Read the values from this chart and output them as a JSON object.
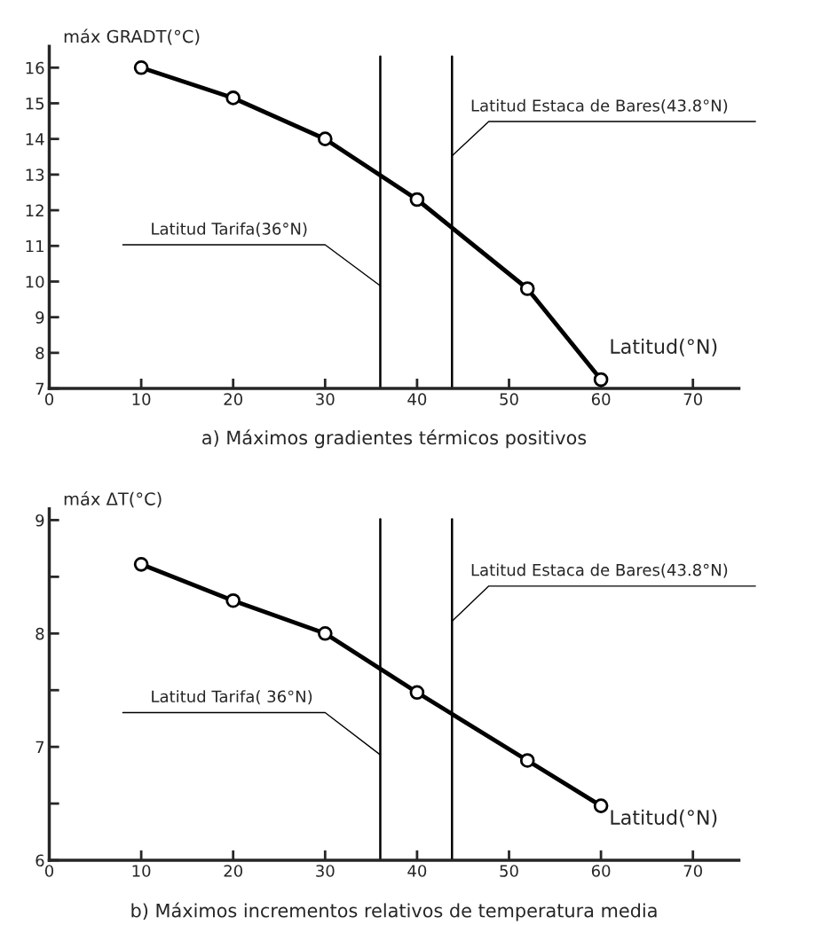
{
  "chart_data": [
    {
      "type": "line",
      "title": "a) Máximos gradientes térmicos positivos",
      "xlabel": "Latitud(°N)",
      "ylabel": "máx GRADT(°C)",
      "x": [
        10,
        20,
        30,
        40,
        52,
        60
      ],
      "values": [
        16.0,
        15.15,
        14.0,
        12.3,
        9.8,
        7.25
      ],
      "color": "#000000",
      "marker": "circle",
      "line_style": "solid",
      "xlim": [
        0,
        75
      ],
      "xticks": [
        0,
        10,
        20,
        30,
        40,
        50,
        60,
        70
      ],
      "ylim": [
        7,
        16.6
      ],
      "yticks": [
        7,
        8,
        9,
        10,
        11,
        12,
        13,
        14,
        15,
        16
      ],
      "ref_lines": [
        {
          "axis": "x",
          "value": 36,
          "label": "Latitud Tarifa(36°N)",
          "color": "#000000"
        },
        {
          "axis": "x",
          "value": 43.8,
          "label": "Latitud Estaca de Bares(43.8°N)",
          "color": "#000000"
        }
      ],
      "grid": false
    },
    {
      "type": "line",
      "title": "b) Máximos incrementos relativos de temperatura media",
      "xlabel": "Latitud(°N)",
      "ylabel": "máx ΔT(°C)",
      "x": [
        10,
        20,
        30,
        40,
        52,
        60
      ],
      "values": [
        8.61,
        8.29,
        8.0,
        7.48,
        6.88,
        6.48
      ],
      "color": "#000000",
      "marker": "circle",
      "line_style": "solid",
      "xlim": [
        0,
        75
      ],
      "xticks": [
        0,
        10,
        20,
        30,
        40,
        50,
        60,
        70
      ],
      "ylim": [
        6,
        9.1
      ],
      "yticks": [
        6,
        {
          "value": 6.5,
          "label": null
        },
        7,
        {
          "value": 7.5,
          "label": null
        },
        8,
        {
          "value": 8.5,
          "label": null
        },
        9
      ],
      "ref_lines": [
        {
          "axis": "x",
          "value": 36,
          "label": "Latitud Tarifa( 36°N)",
          "color": "#000000"
        },
        {
          "axis": "x",
          "value": 43.8,
          "label": "Latitud Estaca de Bares(43.8°N)",
          "color": "#000000"
        }
      ],
      "grid": false
    }
  ]
}
